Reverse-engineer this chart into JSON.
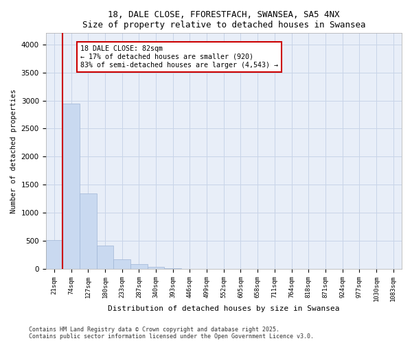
{
  "title_line1": "18, DALE CLOSE, FFORESTFACH, SWANSEA, SA5 4NX",
  "title_line2": "Size of property relative to detached houses in Swansea",
  "xlabel": "Distribution of detached houses by size in Swansea",
  "ylabel": "Number of detached properties",
  "categories": [
    "21sqm",
    "74sqm",
    "127sqm",
    "180sqm",
    "233sqm",
    "287sqm",
    "340sqm",
    "393sqm",
    "446sqm",
    "499sqm",
    "552sqm",
    "605sqm",
    "658sqm",
    "711sqm",
    "764sqm",
    "818sqm",
    "871sqm",
    "924sqm",
    "977sqm",
    "1030sqm",
    "1083sqm"
  ],
  "values": [
    510,
    2950,
    1350,
    420,
    175,
    90,
    35,
    10,
    0,
    0,
    0,
    0,
    0,
    0,
    0,
    0,
    0,
    0,
    0,
    0,
    0
  ],
  "bar_color": "#c9d9f0",
  "bar_edge_color": "#9fb5d5",
  "vline_color": "#cc0000",
  "annotation_text": "18 DALE CLOSE: 82sqm\n← 17% of detached houses are smaller (920)\n83% of semi-detached houses are larger (4,543) →",
  "annotation_box_color": "#cc0000",
  "ylim": [
    0,
    4200
  ],
  "yticks": [
    0,
    500,
    1000,
    1500,
    2000,
    2500,
    3000,
    3500,
    4000
  ],
  "grid_color": "#c8d4e8",
  "bg_color": "#e8eef8",
  "footer_line1": "Contains HM Land Registry data © Crown copyright and database right 2025.",
  "footer_line2": "Contains public sector information licensed under the Open Government Licence v3.0."
}
